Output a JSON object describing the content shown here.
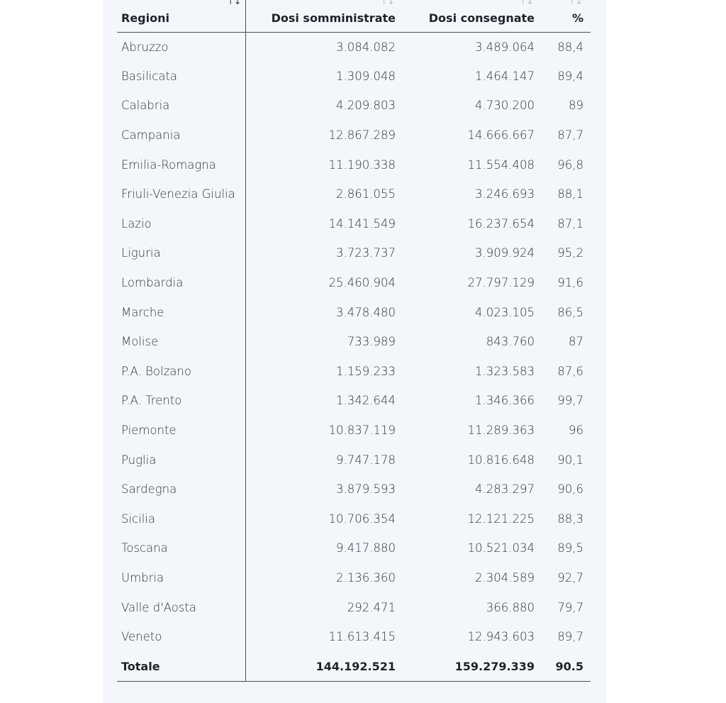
{
  "table": {
    "headers": {
      "region": "Regioni",
      "administered": "Dosi somministrate",
      "delivered": "Dosi consegnate",
      "percent": "%"
    },
    "sort_icon": "↑↓",
    "rows": [
      {
        "region": "Abruzzo",
        "administered": "3.084.082",
        "delivered": "3.489.064",
        "percent": "88,4"
      },
      {
        "region": "Basilicata",
        "administered": "1.309.048",
        "delivered": "1.464.147",
        "percent": "89,4"
      },
      {
        "region": "Calabria",
        "administered": "4.209.803",
        "delivered": "4.730.200",
        "percent": "89"
      },
      {
        "region": "Campania",
        "administered": "12.867.289",
        "delivered": "14.666.667",
        "percent": "87,7"
      },
      {
        "region": "Emilia-Romagna",
        "administered": "11.190.338",
        "delivered": "11.554.408",
        "percent": "96,8"
      },
      {
        "region": "Friuli-Venezia Giulia",
        "administered": "2.861.055",
        "delivered": "3.246.693",
        "percent": "88,1"
      },
      {
        "region": "Lazio",
        "administered": "14.141.549",
        "delivered": "16.237.654",
        "percent": "87,1"
      },
      {
        "region": "Liguria",
        "administered": "3.723.737",
        "delivered": "3.909.924",
        "percent": "95,2"
      },
      {
        "region": "Lombardia",
        "administered": "25.460.904",
        "delivered": "27.797.129",
        "percent": "91,6"
      },
      {
        "region": "Marche",
        "administered": "3.478.480",
        "delivered": "4.023.105",
        "percent": "86,5"
      },
      {
        "region": "Molise",
        "administered": "733.989",
        "delivered": "843.760",
        "percent": "87"
      },
      {
        "region": "P.A. Bolzano",
        "administered": "1.159.233",
        "delivered": "1.323.583",
        "percent": "87,6"
      },
      {
        "region": "P.A. Trento",
        "administered": "1.342.644",
        "delivered": "1.346.366",
        "percent": "99,7"
      },
      {
        "region": "Piemonte",
        "administered": "10.837.119",
        "delivered": "11.289.363",
        "percent": "96"
      },
      {
        "region": "Puglia",
        "administered": "9.747.178",
        "delivered": "10.816.648",
        "percent": "90,1"
      },
      {
        "region": "Sardegna",
        "administered": "3.879.593",
        "delivered": "4.283.297",
        "percent": "90,6"
      },
      {
        "region": "Sicilia",
        "administered": "10.706.354",
        "delivered": "12.121.225",
        "percent": "88,3"
      },
      {
        "region": "Toscana",
        "administered": "9.417.880",
        "delivered": "10.521.034",
        "percent": "89,5"
      },
      {
        "region": "Umbria",
        "administered": "2.136.360",
        "delivered": "2.304.589",
        "percent": "92,7"
      },
      {
        "region": "Valle d'Aosta",
        "administered": "292.471",
        "delivered": "366.880",
        "percent": "79,7"
      },
      {
        "region": "Veneto",
        "administered": "11.613.415",
        "delivered": "12.943.603",
        "percent": "89,7"
      }
    ],
    "total": {
      "region": "Totale",
      "administered": "144.192.521",
      "delivered": "159.279.339",
      "percent": "90.5"
    },
    "colors": {
      "panel_background": "#f3f6fa",
      "rule": "#4a4f57",
      "text": "#30343b",
      "sort_inactive": "#b9bfc8"
    }
  }
}
